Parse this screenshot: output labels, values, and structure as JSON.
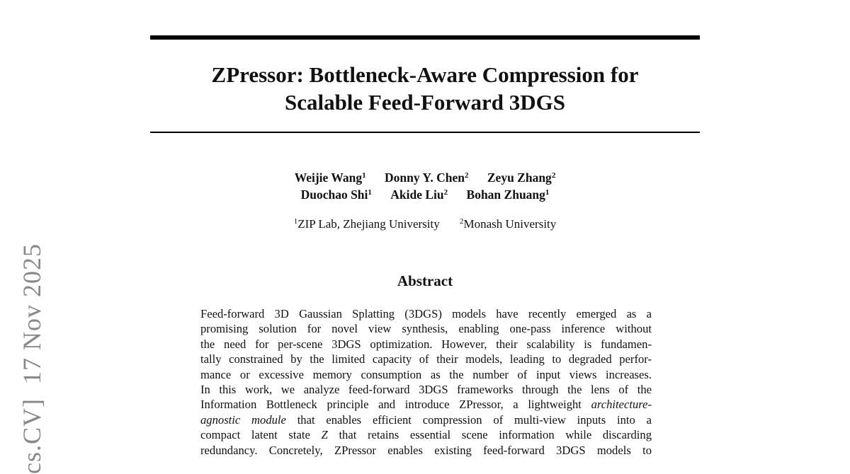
{
  "side_stamp": "cs.CV]  17 Nov 2025",
  "title": {
    "line1": "ZPressor: Bottleneck-Aware Compression for",
    "line2": "Scalable Feed-Forward 3DGS"
  },
  "authors": [
    {
      "name": "Weijie Wang",
      "affiliation": "1"
    },
    {
      "name": "Donny Y. Chen",
      "affiliation": "2"
    },
    {
      "name": "Zeyu Zhang",
      "affiliation": "2"
    },
    {
      "name": "Duochao Shi",
      "affiliation": "1"
    },
    {
      "name": "Akide Liu",
      "affiliation": "2"
    },
    {
      "name": "Bohan Zhuang",
      "affiliation": "1"
    }
  ],
  "affiliations": [
    {
      "mark": "1",
      "name": "ZIP Lab, Zhejiang University"
    },
    {
      "mark": "2",
      "name": "Monash University"
    }
  ],
  "abstract": {
    "heading": "Abstract",
    "lines": [
      [
        "Feed-forward 3D Gaussian Splatting (3DGS) models have recently emerged as a"
      ],
      [
        "promising solution for novel view synthesis, enabling one-pass inference without"
      ],
      [
        "the need for per-scene 3DGS optimization. However, their scalability is fundamen-"
      ],
      [
        "tally constrained by the limited capacity of their models, leading to degraded perfor-"
      ],
      [
        "mance or excessive memory consumption as the number of input views increases."
      ],
      [
        "In this work, we analyze feed-forward 3DGS frameworks through the lens of the"
      ],
      [
        "Information Bottleneck principle and introduce ZPressor, a lightweight ",
        "architecture-"
      ],
      [
        "agnostic module",
        " that enables efficient compression of multi-view inputs into a"
      ],
      [
        "compact latent state ",
        "Z",
        " that retains essential scene information while discarding"
      ],
      [
        "redundancy. Concretely, ZPressor enables existing feed-forward 3DGS models to"
      ]
    ]
  }
}
